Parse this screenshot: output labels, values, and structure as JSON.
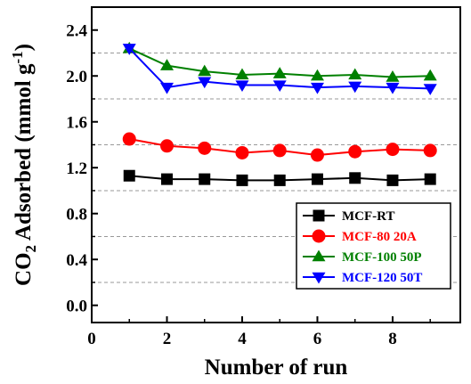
{
  "chart_data": {
    "type": "line",
    "xlabel": "Number of run",
    "ylabel_parts": [
      "CO",
      "2",
      " Adsorbed (mmol g",
      "-1",
      ")"
    ],
    "xlim": [
      0,
      9.8
    ],
    "ylim": [
      -0.15,
      2.6
    ],
    "xticks": [
      0,
      2,
      4,
      6,
      8
    ],
    "xtick_labels": [
      "0",
      "2",
      "4",
      "6",
      "8"
    ],
    "yticks": [
      0.0,
      0.4,
      0.8,
      1.2,
      1.6,
      2.0,
      2.4
    ],
    "ytick_labels": [
      "0.0",
      "0.4",
      "0.8",
      "1.2",
      "1.6",
      "2.0",
      "2.4"
    ],
    "gridlines_y": [
      0.2,
      0.6,
      1.0,
      1.4,
      1.8,
      2.2
    ],
    "grid": "dashed horizontal",
    "legend_position": "bottom-right",
    "x": [
      1,
      2,
      3,
      4,
      5,
      6,
      7,
      8,
      9
    ],
    "series": [
      {
        "name": "MCF-RT",
        "marker": "square",
        "color": "#000000",
        "values": [
          1.13,
          1.1,
          1.1,
          1.09,
          1.09,
          1.1,
          1.11,
          1.09,
          1.1
        ]
      },
      {
        "name": "MCF-80 20A",
        "marker": "circle",
        "color": "#ff0000",
        "values": [
          1.45,
          1.39,
          1.37,
          1.33,
          1.35,
          1.31,
          1.34,
          1.36,
          1.35
        ]
      },
      {
        "name": "MCF-100 50P",
        "marker": "triangle-up",
        "color": "#008000",
        "values": [
          2.24,
          2.09,
          2.04,
          2.01,
          2.02,
          2.0,
          2.01,
          1.99,
          2.0
        ]
      },
      {
        "name": "MCF-120 50T",
        "marker": "triangle-down",
        "color": "#0000ff",
        "values": [
          2.24,
          1.9,
          1.95,
          1.92,
          1.92,
          1.9,
          1.91,
          1.9,
          1.89
        ]
      }
    ]
  }
}
